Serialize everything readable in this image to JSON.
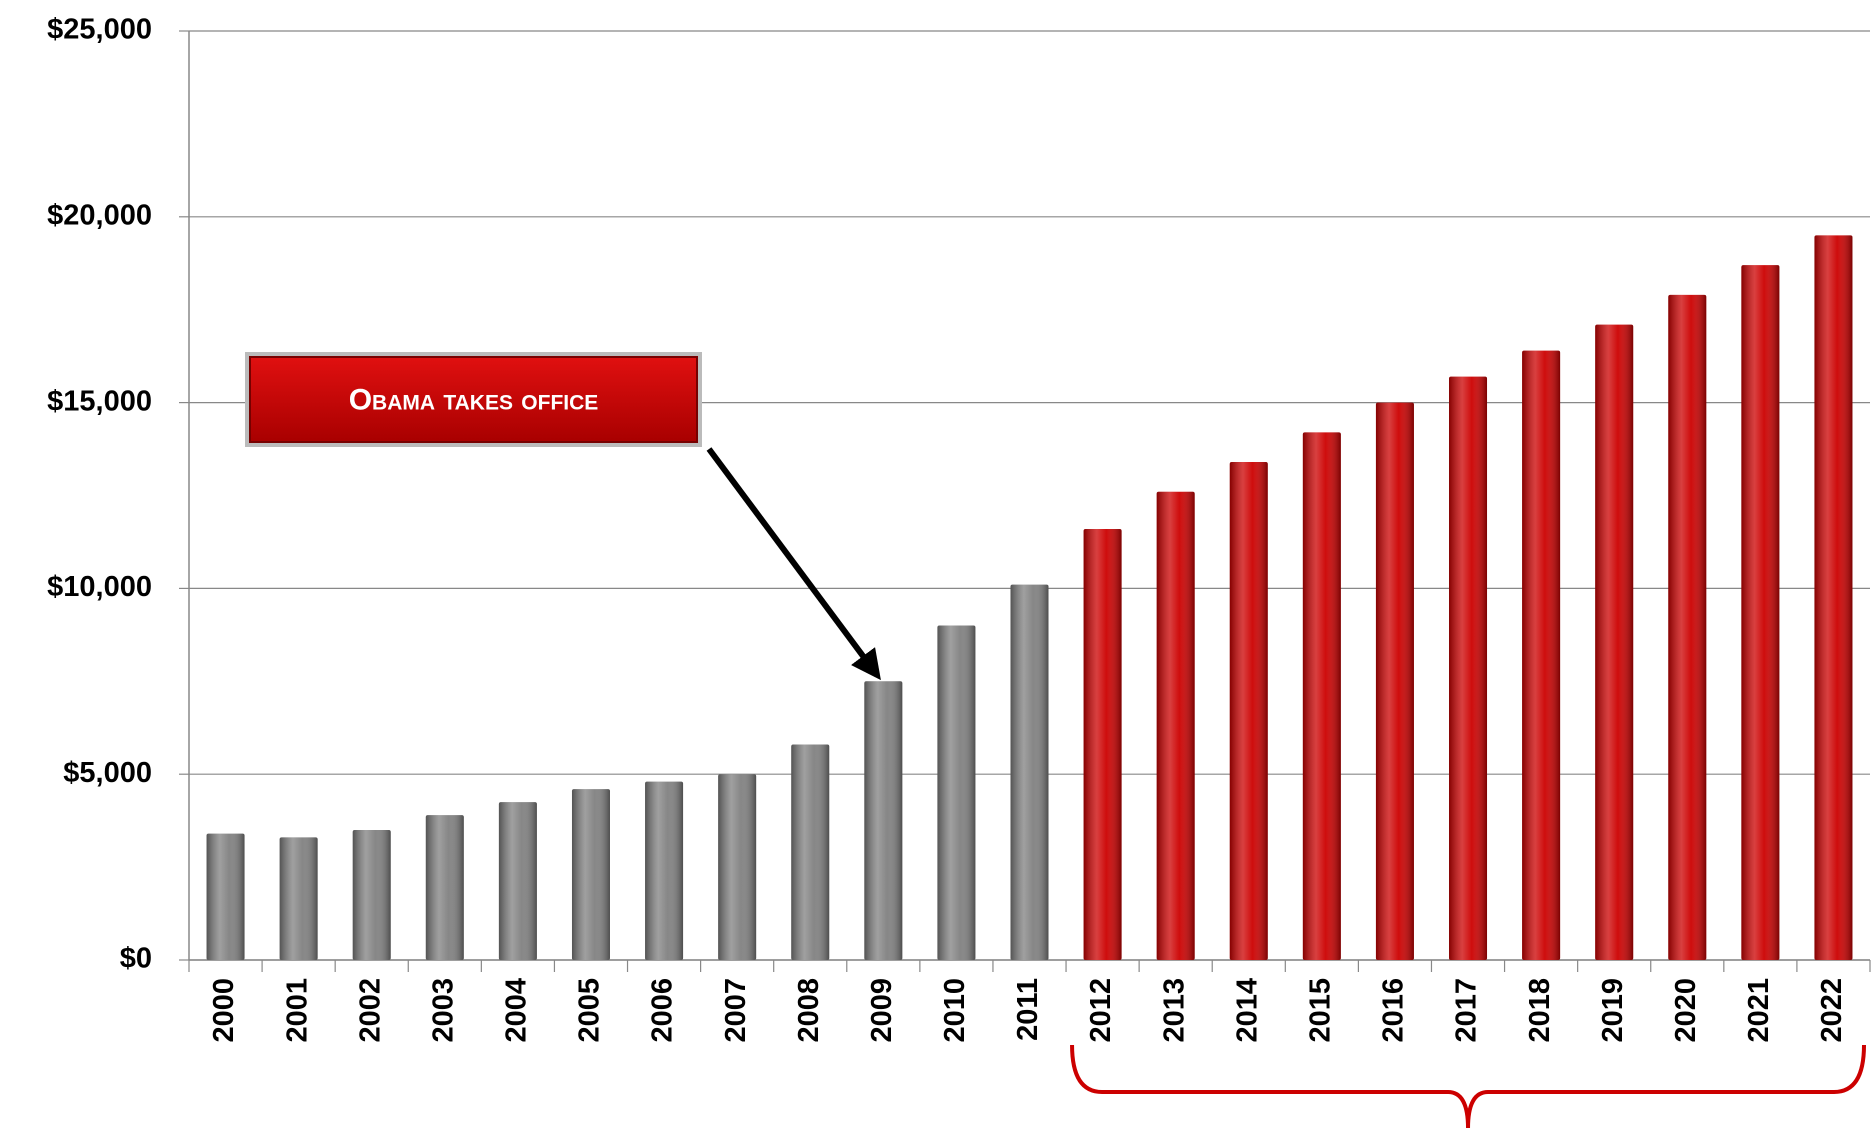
{
  "chart_data": {
    "type": "bar",
    "categories": [
      "2000",
      "2001",
      "2002",
      "2003",
      "2004",
      "2005",
      "2006",
      "2007",
      "2008",
      "2009",
      "2010",
      "2011",
      "2012",
      "2013",
      "2014",
      "2015",
      "2016",
      "2017",
      "2018",
      "2019",
      "2020",
      "2021",
      "2022"
    ],
    "values": [
      3400,
      3300,
      3500,
      3900,
      4250,
      4600,
      4800,
      5000,
      5800,
      7500,
      9000,
      10100,
      11600,
      12600,
      13400,
      14200,
      15000,
      15700,
      16400,
      17100,
      17900,
      18700,
      19500
    ],
    "colors": [
      "#808080",
      "#808080",
      "#808080",
      "#808080",
      "#808080",
      "#808080",
      "#808080",
      "#808080",
      "#808080",
      "#808080",
      "#808080",
      "#808080",
      "#cc0000",
      "#cc0000",
      "#cc0000",
      "#cc0000",
      "#cc0000",
      "#cc0000",
      "#cc0000",
      "#cc0000",
      "#cc0000",
      "#cc0000",
      "#cc0000"
    ],
    "ylim": [
      0,
      25000
    ],
    "yticks": [
      {
        "value": 0,
        "label": "$0"
      },
      {
        "value": 5000,
        "label": "$5,000"
      },
      {
        "value": 10000,
        "label": "$10,000"
      },
      {
        "value": 15000,
        "label": "$15,000"
      },
      {
        "value": 20000,
        "label": "$20,000"
      },
      {
        "value": 25000,
        "label": "$25,000"
      }
    ],
    "grid": true,
    "annotations": [
      {
        "text": "Obama takes office",
        "category": 9
      }
    ]
  }
}
